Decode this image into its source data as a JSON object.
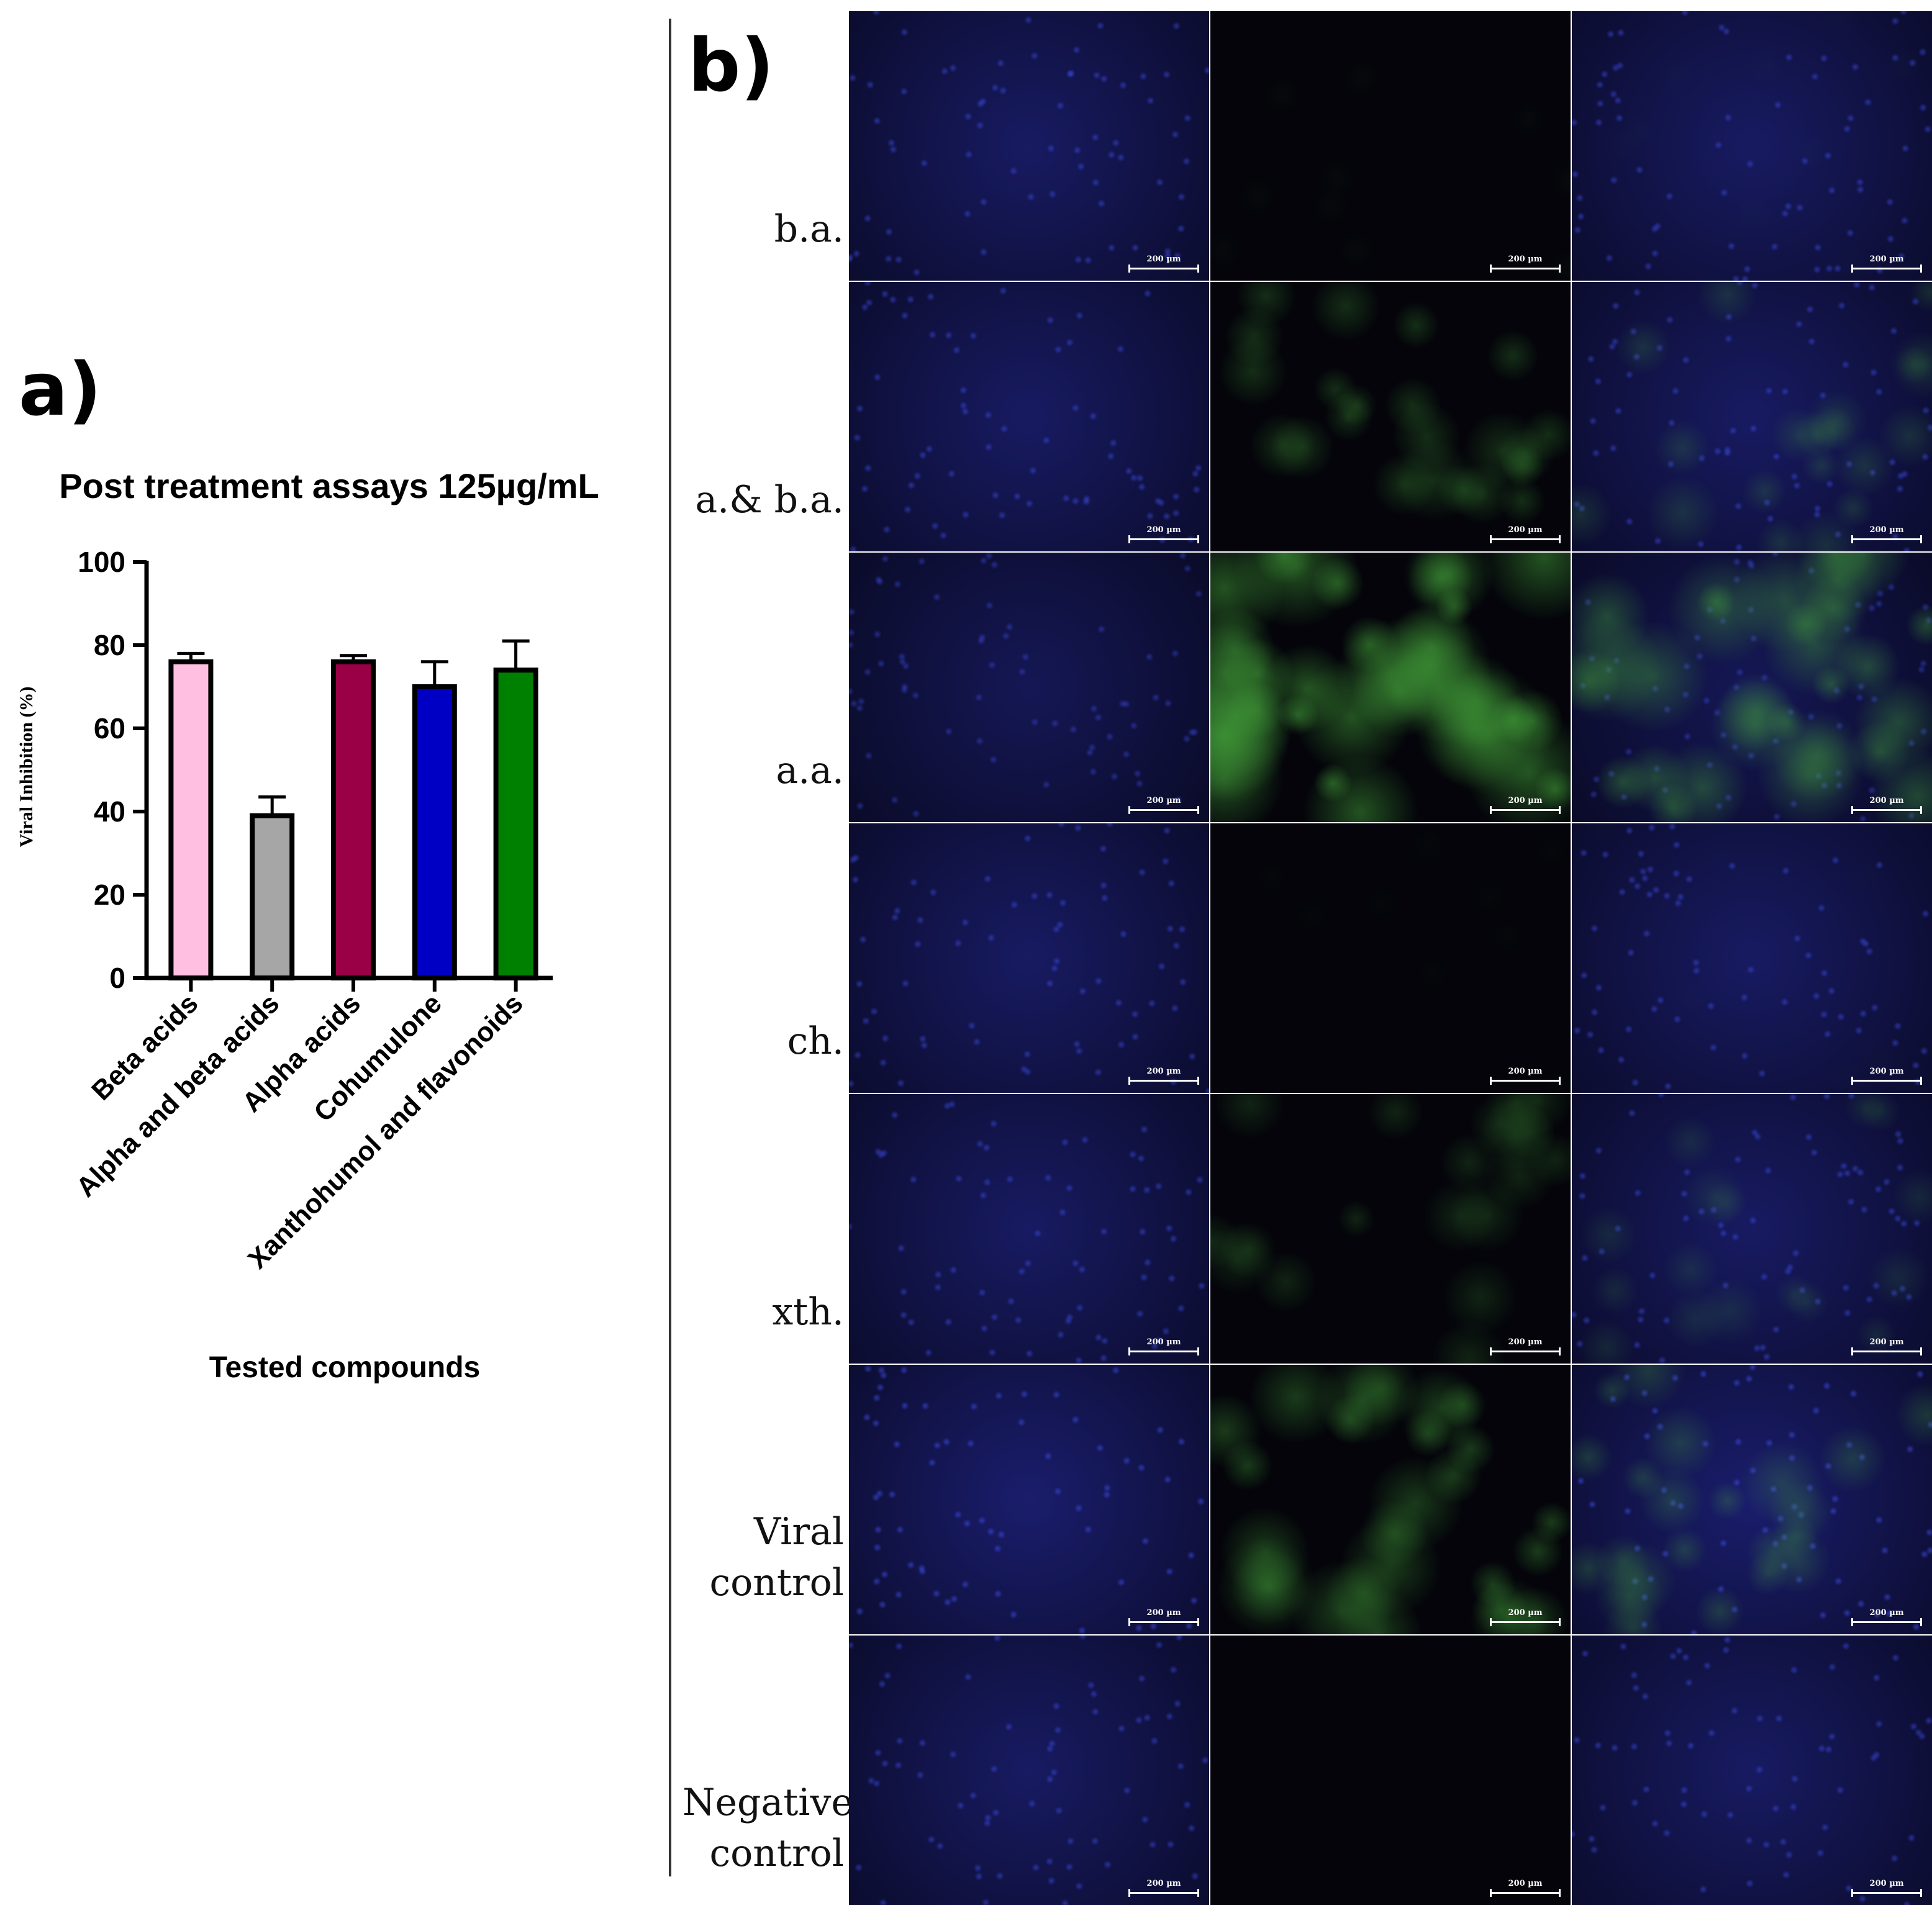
{
  "panel_a": {
    "letter": "a)"
  },
  "panel_b": {
    "letter": "b)",
    "scale_label": "200 µm",
    "rows": [
      {
        "label": [
          "b.a."
        ],
        "blue": 1.0,
        "green": 0.05
      },
      {
        "label": [
          "a.& b.a."
        ],
        "blue": 1.0,
        "green": 0.45
      },
      {
        "label": [
          "a.a."
        ],
        "blue": 0.85,
        "green": 0.85
      },
      {
        "label": [
          "ch."
        ],
        "blue": 1.0,
        "green": 0.03
      },
      {
        "label": [
          "xth."
        ],
        "blue": 1.0,
        "green": 0.35
      },
      {
        "label": [
          "Viral",
          "control"
        ],
        "blue": 1.1,
        "green": 0.6
      },
      {
        "label": [
          "Negative",
          "control"
        ],
        "blue": 1.0,
        "green": 0.0
      }
    ],
    "colors": {
      "nucleus": "#2e38c8",
      "virus": "#3ea93a",
      "background": "#04040a"
    }
  },
  "chart_data": {
    "type": "bar",
    "title": "Post treatment assays 125µg/mL",
    "xlabel": "Tested compounds",
    "ylabel": "Viral Inhibition (%)",
    "ylim": [
      0,
      100
    ],
    "yticks": [
      0,
      20,
      40,
      60,
      80,
      100
    ],
    "categories": [
      "Beta acids",
      "Alpha and beta acids",
      "Alpha acids",
      "Cohumulone",
      "Xanthohumol and flavonoids"
    ],
    "values": [
      76,
      39,
      76,
      70,
      74
    ],
    "errors": [
      2,
      4.5,
      1.5,
      6,
      7
    ],
    "colors": [
      "#ffbfe0",
      "#a6a6a6",
      "#9a0045",
      "#0000c4",
      "#008000"
    ]
  }
}
